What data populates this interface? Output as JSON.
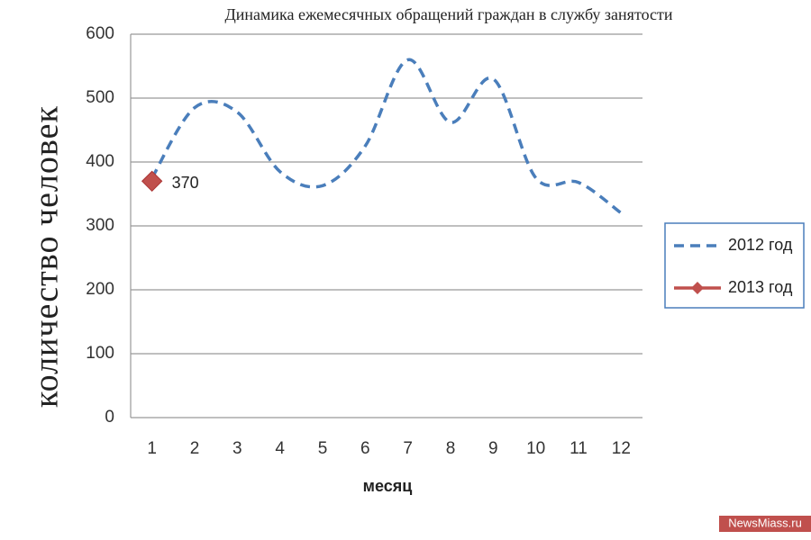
{
  "chart_data": {
    "type": "line",
    "title": "Динамика ежемесячных обращений  граждан в службу занятости",
    "x_label": "месяц",
    "y_label": "количество человек",
    "categories": [
      "1",
      "2",
      "3",
      "4",
      "5",
      "6",
      "7",
      "8",
      "9",
      "10",
      "11",
      "12"
    ],
    "series": [
      {
        "name": "2012 год",
        "color": "#4a7ebb",
        "dashed": true,
        "marker": false,
        "values": [
          375,
          485,
          478,
          385,
          363,
          425,
          560,
          462,
          530,
          375,
          368,
          320
        ]
      },
      {
        "name": "2013 год",
        "color": "#c0504d",
        "dashed": false,
        "marker": true,
        "show_labels": true,
        "values": [
          370,
          null,
          null,
          null,
          null,
          null,
          null,
          null,
          null,
          null,
          null,
          null
        ]
      }
    ],
    "ylim": [
      0,
      600
    ],
    "yticks": [
      0,
      100,
      200,
      300,
      400,
      500,
      600
    ],
    "grid": true,
    "legend": "right",
    "watermark": "NewsMiass.ru"
  }
}
